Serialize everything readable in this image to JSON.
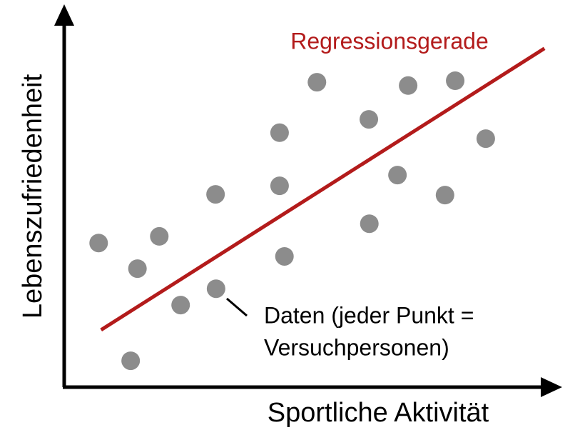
{
  "chart_data": {
    "type": "scatter",
    "xlabel": "Sportliche Aktivität",
    "ylabel": "Lebenszufriedenheit",
    "xlim": [
      0,
      100
    ],
    "ylim": [
      0,
      100
    ],
    "x": [
      7.1,
      15.1,
      19.6,
      13.7,
      24.0,
      31.3,
      31.2,
      44.4,
      44.4,
      45.4,
      52.1,
      62.8,
      62.9,
      68.7,
      70.9,
      78.5,
      80.6,
      86.9
    ],
    "values": [
      38.8,
      31.9,
      40.6,
      7.1,
      22.1,
      26.5,
      51.9,
      68.5,
      54.2,
      35.2,
      82.1,
      72.1,
      44.0,
      57.1,
      81.2,
      51.7,
      82.5,
      66.9
    ],
    "color": "#8c8c8c",
    "regression": {
      "name": "Regressionsgerade",
      "color": "#b31b1b",
      "x": [
        7.6,
        99
      ],
      "y": [
        15.4,
        91.2
      ]
    },
    "annotation": [
      "Daten (jeder Punkt =",
      "Versuchpersonen)"
    ]
  }
}
